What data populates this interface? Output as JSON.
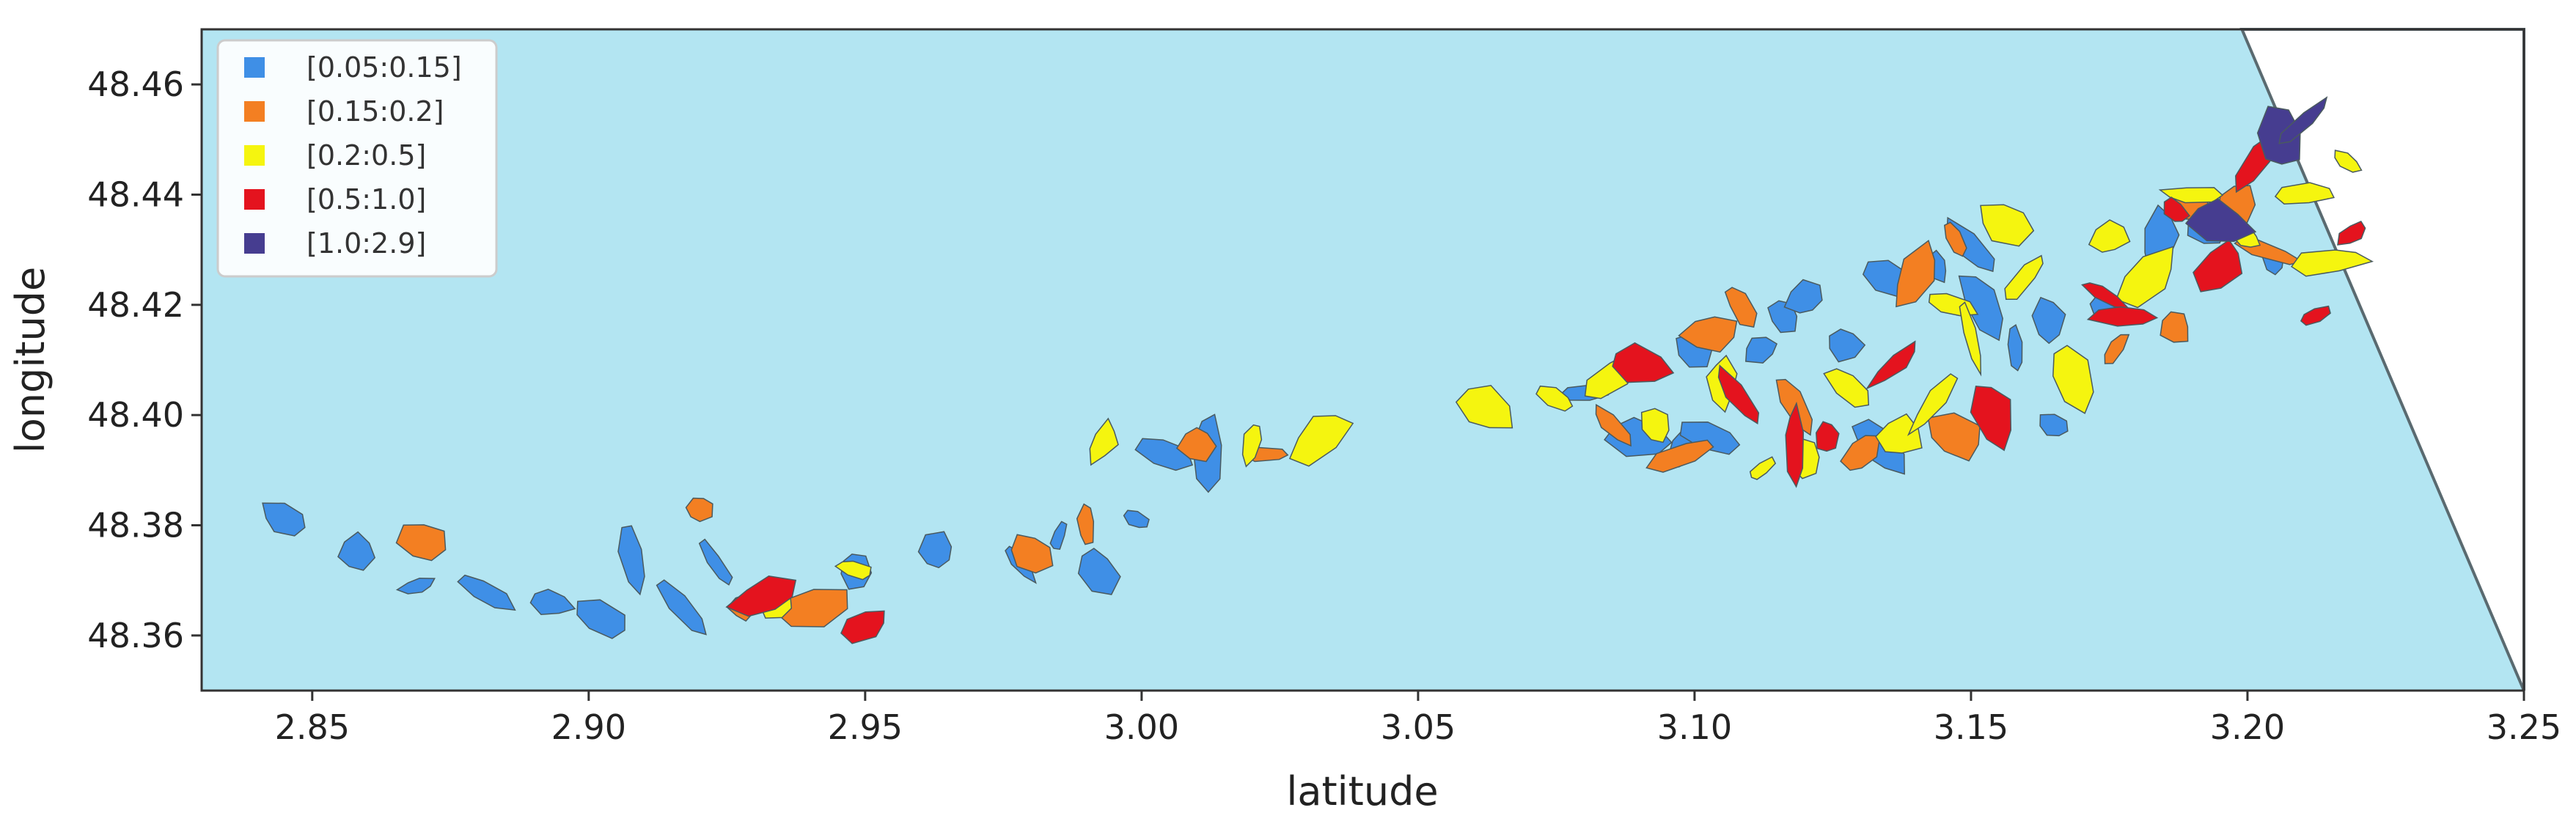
{
  "chart_data": {
    "type": "map",
    "xlabel": "latitude",
    "ylabel": "longitude",
    "xlim": [
      2.83,
      3.25
    ],
    "ylim": [
      48.35,
      48.47
    ],
    "xticks": [
      "2.85",
      "2.90",
      "2.95",
      "3.00",
      "3.05",
      "3.10",
      "3.15",
      "3.20",
      "3.25"
    ],
    "yticks": [
      "48.36",
      "48.38",
      "48.40",
      "48.42",
      "48.44",
      "48.46"
    ],
    "grid": false,
    "legend_position": "top-left",
    "background_color": "#b3e5f2",
    "coverage_boundary": [
      [
        3.199,
        48.47
      ],
      [
        3.25,
        48.35
      ]
    ],
    "legend": [
      {
        "label": "[0.05:0.15]",
        "color": "#3f8fe6"
      },
      {
        "label": "[0.15:0.2]",
        "color": "#f37f22"
      },
      {
        "label": "[0.2:0.5]",
        "color": "#f5f50f"
      },
      {
        "label": "[0.5:1.0]",
        "color": "#e4131e"
      },
      {
        "label": "[1.0:2.9]",
        "color": "#463d90"
      }
    ],
    "classes": [
      {
        "class": "[0.05:0.15]",
        "parcels": [
          [
            2.845,
            48.381
          ],
          [
            2.858,
            48.375
          ],
          [
            2.869,
            48.369
          ],
          [
            2.881,
            48.368
          ],
          [
            2.893,
            48.366
          ],
          [
            2.902,
            48.363
          ],
          [
            2.908,
            48.374
          ],
          [
            2.917,
            48.365
          ],
          [
            2.923,
            48.373
          ],
          [
            2.932,
            48.367
          ],
          [
            2.948,
            48.372
          ],
          [
            2.963,
            48.375
          ],
          [
            2.978,
            48.373
          ],
          [
            2.985,
            48.378
          ],
          [
            2.992,
            48.372
          ],
          [
            2.999,
            48.381
          ],
          [
            3.004,
            48.393
          ],
          [
            3.012,
            48.393
          ],
          [
            3.08,
            48.404
          ],
          [
            3.09,
            48.396
          ],
          [
            3.098,
            48.394
          ],
          [
            3.1,
            48.412
          ],
          [
            3.103,
            48.396
          ],
          [
            3.112,
            48.412
          ],
          [
            3.116,
            48.418
          ],
          [
            3.12,
            48.421
          ],
          [
            3.127,
            48.413
          ],
          [
            3.134,
            48.394
          ],
          [
            3.135,
            48.425
          ],
          [
            3.144,
            48.427
          ],
          [
            3.15,
            48.43
          ],
          [
            3.158,
            48.412
          ],
          [
            3.164,
            48.417
          ],
          [
            3.174,
            48.42
          ],
          [
            3.184,
            48.432
          ],
          [
            3.193,
            48.434
          ],
          [
            3.205,
            48.428
          ],
          [
            3.165,
            48.398
          ],
          [
            3.152,
            48.42
          ]
        ]
      },
      {
        "class": "[0.15:0.2]",
        "parcels": [
          [
            2.87,
            48.377
          ],
          [
            2.92,
            48.383
          ],
          [
            2.928,
            48.365
          ],
          [
            2.94,
            48.365
          ],
          [
            2.98,
            48.375
          ],
          [
            2.99,
            48.38
          ],
          [
            3.01,
            48.395
          ],
          [
            3.022,
            48.393
          ],
          [
            3.085,
            48.398
          ],
          [
            3.098,
            48.393
          ],
          [
            3.103,
            48.415
          ],
          [
            3.108,
            48.42
          ],
          [
            3.118,
            48.402
          ],
          [
            3.14,
            48.425
          ],
          [
            3.147,
            48.432
          ],
          [
            3.176,
            48.412
          ],
          [
            3.187,
            48.416
          ],
          [
            3.19,
            48.438
          ],
          [
            3.198,
            48.438
          ],
          [
            3.203,
            48.43
          ],
          [
            3.147,
            48.396
          ],
          [
            3.13,
            48.393
          ]
        ]
      },
      {
        "class": "[0.2:0.5]",
        "parcels": [
          [
            2.934,
            48.366
          ],
          [
            2.948,
            48.372
          ],
          [
            2.993,
            48.395
          ],
          [
            3.02,
            48.395
          ],
          [
            3.032,
            48.396
          ],
          [
            3.062,
            48.401
          ],
          [
            3.075,
            48.403
          ],
          [
            3.085,
            48.407
          ],
          [
            3.093,
            48.398
          ],
          [
            3.105,
            48.406
          ],
          [
            3.112,
            48.39
          ],
          [
            3.12,
            48.392
          ],
          [
            3.128,
            48.405
          ],
          [
            3.137,
            48.396
          ],
          [
            3.143,
            48.402
          ],
          [
            3.146,
            48.42
          ],
          [
            3.15,
            48.414
          ],
          [
            3.156,
            48.435
          ],
          [
            3.16,
            48.425
          ],
          [
            3.168,
            48.407
          ],
          [
            3.175,
            48.432
          ],
          [
            3.182,
            48.425
          ],
          [
            3.19,
            48.44
          ],
          [
            3.2,
            48.432
          ],
          [
            3.21,
            48.44
          ],
          [
            3.215,
            48.428
          ],
          [
            3.218,
            48.446
          ]
        ]
      },
      {
        "class": "[0.5:1.0]",
        "parcels": [
          [
            2.932,
            48.367
          ],
          [
            2.95,
            48.362
          ],
          [
            3.09,
            48.409
          ],
          [
            3.108,
            48.403
          ],
          [
            3.118,
            48.395
          ],
          [
            3.124,
            48.396
          ],
          [
            3.136,
            48.409
          ],
          [
            3.154,
            48.4
          ],
          [
            3.174,
            48.422
          ],
          [
            3.178,
            48.418
          ],
          [
            3.187,
            48.437
          ],
          [
            3.195,
            48.427
          ],
          [
            3.202,
            48.446
          ],
          [
            3.212,
            48.418
          ],
          [
            3.219,
            48.433
          ]
        ]
      },
      {
        "class": "[1.0:2.9]",
        "parcels": [
          [
            3.206,
            48.45
          ],
          [
            3.21,
            48.453
          ],
          [
            3.195,
            48.435
          ]
        ]
      }
    ]
  }
}
